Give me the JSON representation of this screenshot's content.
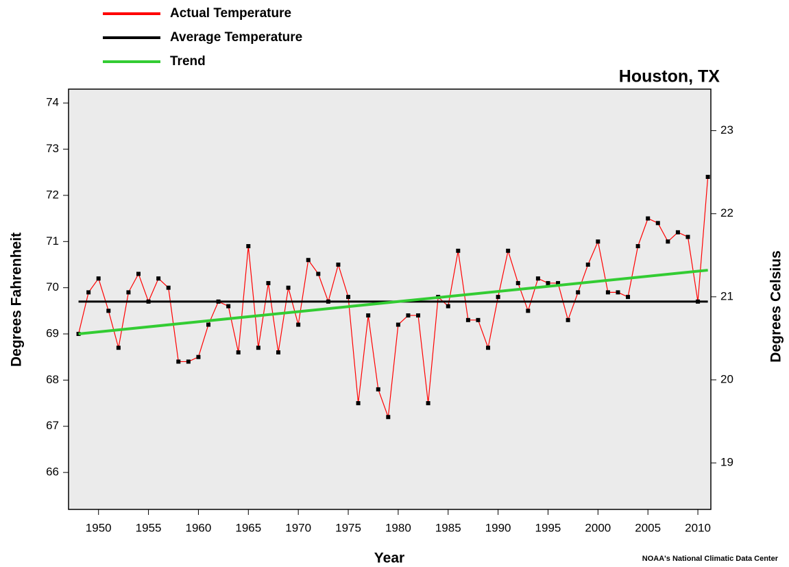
{
  "chart_data": {
    "type": "line",
    "title": "Houston, TX",
    "x_label": "Year",
    "y_label": "Degrees Fahrenheit",
    "y2_label": "Degrees Celsius",
    "credit": "NOAA's National Climatic Data Center",
    "xlim": [
      1947,
      2011.3
    ],
    "xticks": [
      1950,
      1955,
      1960,
      1965,
      1970,
      1975,
      1980,
      1985,
      1990,
      1995,
      2000,
      2005,
      2010
    ],
    "ylim": [
      65.2,
      74.3
    ],
    "yticks": [
      66,
      67,
      68,
      69,
      70,
      71,
      72,
      73,
      74
    ],
    "y2lim": [
      18.44,
      23.5
    ],
    "y2ticks": [
      19,
      20,
      21,
      22,
      23
    ],
    "grid": false,
    "legend_position": "top-left",
    "background": "#ebebeb",
    "marker_color": "#000000",
    "series": [
      {
        "name": "Actual Temperature",
        "color": "#ff0000",
        "x": [
          1948,
          1949,
          1950,
          1951,
          1952,
          1953,
          1954,
          1955,
          1956,
          1957,
          1958,
          1959,
          1960,
          1961,
          1962,
          1963,
          1964,
          1965,
          1966,
          1967,
          1968,
          1969,
          1970,
          1971,
          1972,
          1973,
          1974,
          1975,
          1976,
          1977,
          1978,
          1979,
          1980,
          1981,
          1982,
          1983,
          1984,
          1985,
          1986,
          1987,
          1988,
          1989,
          1990,
          1991,
          1992,
          1993,
          1994,
          1995,
          1996,
          1997,
          1998,
          1999,
          2000,
          2001,
          2002,
          2003,
          2004,
          2005,
          2006,
          2007,
          2008,
          2009,
          2010,
          2011
        ],
        "values": [
          69.0,
          69.9,
          70.2,
          69.5,
          68.7,
          69.9,
          70.3,
          69.7,
          70.2,
          70.0,
          68.4,
          68.4,
          68.5,
          69.2,
          69.7,
          69.6,
          68.6,
          70.9,
          68.7,
          70.1,
          68.6,
          70.0,
          69.2,
          70.6,
          70.3,
          69.7,
          70.5,
          69.8,
          67.5,
          69.4,
          67.8,
          67.2,
          69.2,
          69.4,
          69.4,
          67.5,
          69.8,
          69.6,
          70.8,
          69.3,
          69.3,
          68.7,
          69.8,
          70.8,
          70.1,
          69.5,
          70.2,
          70.1,
          70.1,
          69.3,
          69.9,
          70.5,
          71.0,
          69.9,
          69.9,
          69.8,
          70.9,
          71.5,
          71.4,
          71.0,
          71.2,
          71.1,
          69.7,
          72.4
        ]
      },
      {
        "name": "Average Temperature",
        "color": "#000000",
        "x": [
          1948,
          2011
        ],
        "values": [
          69.7,
          69.7
        ]
      },
      {
        "name": "Trend",
        "color": "#33cc33",
        "x": [
          1948,
          2011
        ],
        "values": [
          69.0,
          70.38
        ]
      }
    ]
  }
}
